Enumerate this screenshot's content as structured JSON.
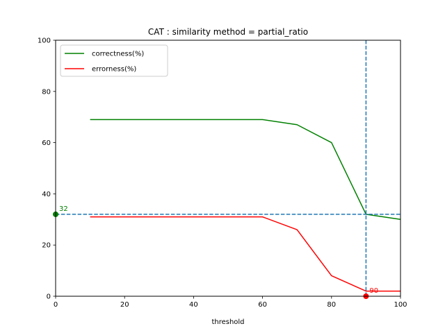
{
  "chart_data": {
    "type": "line",
    "title": "CAT : similarity method = partial_ratio",
    "xlabel": "threshold",
    "ylabel": "",
    "xlim": [
      0,
      100
    ],
    "ylim": [
      0,
      100
    ],
    "xticks": [
      0,
      20,
      40,
      60,
      80,
      100
    ],
    "yticks": [
      0,
      20,
      40,
      60,
      80,
      100
    ],
    "grid": false,
    "legend_position": "top-left",
    "series": [
      {
        "name": "correctness(%)",
        "color": "#008000",
        "x": [
          10,
          20,
          30,
          40,
          50,
          60,
          70,
          80,
          90,
          100
        ],
        "y": [
          69,
          69,
          69,
          69,
          69,
          69,
          67,
          60,
          32,
          30
        ]
      },
      {
        "name": "errorness(%)",
        "color": "#ff0000",
        "x": [
          10,
          20,
          30,
          40,
          50,
          60,
          70,
          80,
          90,
          100
        ],
        "y": [
          31,
          31,
          31,
          31,
          31,
          31,
          26,
          8,
          2,
          2
        ]
      }
    ],
    "reference_lines": {
      "color": "#1f77b4",
      "vertical_x": 90,
      "horizontal_y": 32
    },
    "markers": [
      {
        "x": 0,
        "y": 32,
        "color": "#008000",
        "label": "32"
      },
      {
        "x": 90,
        "y": 0,
        "color": "#ff0000",
        "label": "90"
      }
    ]
  }
}
